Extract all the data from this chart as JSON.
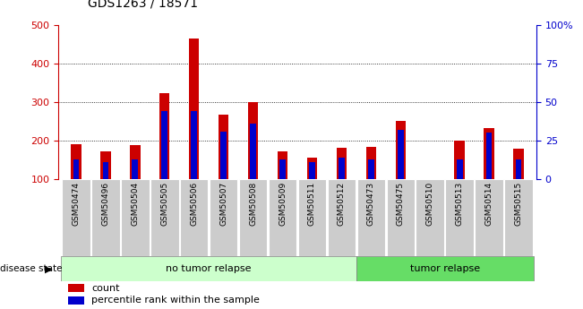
{
  "title": "GDS1263 / 18571",
  "samples": [
    "GSM50474",
    "GSM50496",
    "GSM50504",
    "GSM50505",
    "GSM50506",
    "GSM50507",
    "GSM50508",
    "GSM50509",
    "GSM50511",
    "GSM50512",
    "GSM50473",
    "GSM50475",
    "GSM50510",
    "GSM50513",
    "GSM50514",
    "GSM50515"
  ],
  "count_values": [
    190,
    172,
    188,
    322,
    465,
    268,
    300,
    172,
    155,
    182,
    183,
    250,
    100,
    200,
    232,
    178
  ],
  "percentile_values": [
    13,
    11,
    13,
    44,
    44,
    31,
    36,
    13,
    11,
    14,
    13,
    32,
    0,
    13,
    30,
    13
  ],
  "no_tumor_count": 10,
  "tumor_count": 6,
  "bar_width": 0.35,
  "perc_bar_width": 0.2,
  "ylim_left": [
    100,
    500
  ],
  "ylim_right": [
    0,
    100
  ],
  "yticks_left": [
    100,
    200,
    300,
    400,
    500
  ],
  "yticks_right": [
    0,
    25,
    50,
    75,
    100
  ],
  "yticklabels_right": [
    "0",
    "25",
    "50",
    "75",
    "100%"
  ],
  "red_color": "#cc0000",
  "blue_color": "#0000cc",
  "xlabel_area_color_notumor": "#ccffcc",
  "xlabel_area_color_tumor": "#66dd66",
  "xlabel_area_color_sample": "#cccccc",
  "no_tumor_label": "no tumor relapse",
  "tumor_label": "tumor relapse",
  "disease_state_label": "disease state",
  "legend_count": "count",
  "legend_percentile": "percentile rank within the sample",
  "left_axis_color": "#cc0000",
  "right_axis_color": "#0000cc",
  "figsize": [
    6.51,
    3.45
  ],
  "dpi": 100
}
